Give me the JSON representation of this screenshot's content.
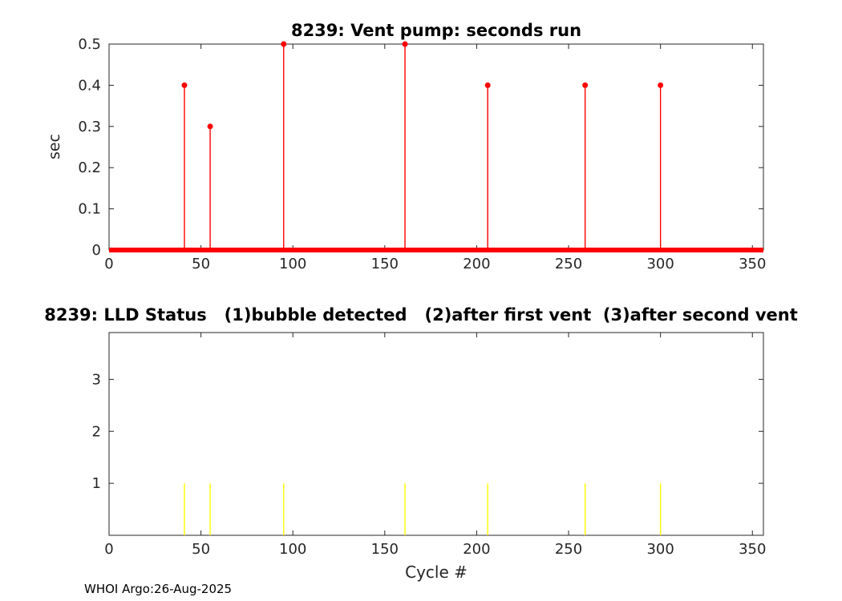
{
  "footer": "WHOI Argo:26-Aug-2025",
  "chart_data": [
    {
      "type": "stem",
      "title": "8239: Vent pump: seconds run",
      "xlabel": "",
      "ylabel": "sec",
      "xlim": [
        0,
        356
      ],
      "ylim": [
        0,
        0.5
      ],
      "xticks": [
        0,
        50,
        100,
        150,
        200,
        250,
        300,
        350
      ],
      "yticks": [
        0,
        0.1,
        0.2,
        0.3,
        0.4,
        0.5
      ],
      "ytick_labels": [
        "0",
        "0.1",
        "0.2",
        "0.3",
        "0.4",
        "0.5"
      ],
      "grid": false,
      "legend": "none",
      "marker": "circle",
      "baseline": {
        "y": 0,
        "x_start": 0,
        "x_end": 356,
        "color": "#ff0000",
        "note": "all other cycles have value 0, forming a thick red line along the x-axis"
      },
      "series": [
        {
          "name": "vent pump seconds run",
          "color": "#ff0000",
          "x": [
            41,
            55,
            95,
            161,
            206,
            259,
            300
          ],
          "y": [
            0.4,
            0.3,
            0.5,
            0.5,
            0.4,
            0.4,
            0.4
          ]
        }
      ]
    },
    {
      "type": "stem",
      "title": "8239: LLD Status   (1)bubble detected   (2)after first vent  (3)after second vent",
      "xlabel": "Cycle #",
      "ylabel": "",
      "xlim": [
        0,
        356
      ],
      "ylim": [
        0,
        3.9
      ],
      "xticks": [
        0,
        50,
        100,
        150,
        200,
        250,
        300,
        350
      ],
      "yticks": [
        1,
        2,
        3
      ],
      "ytick_labels": [
        "1",
        "2",
        "3"
      ],
      "grid": false,
      "legend": "none",
      "marker": "none",
      "series": [
        {
          "name": "LLD status",
          "color": "#ffff00",
          "x": [
            41,
            55,
            95,
            161,
            206,
            259,
            300
          ],
          "y": [
            1,
            1,
            1,
            1,
            1,
            1,
            1
          ]
        }
      ]
    }
  ],
  "style": {
    "axis_color": "#262626",
    "background": "#ffffff",
    "stem_color_top": "#ff0000",
    "stem_color_bottom": "#ffff00"
  }
}
